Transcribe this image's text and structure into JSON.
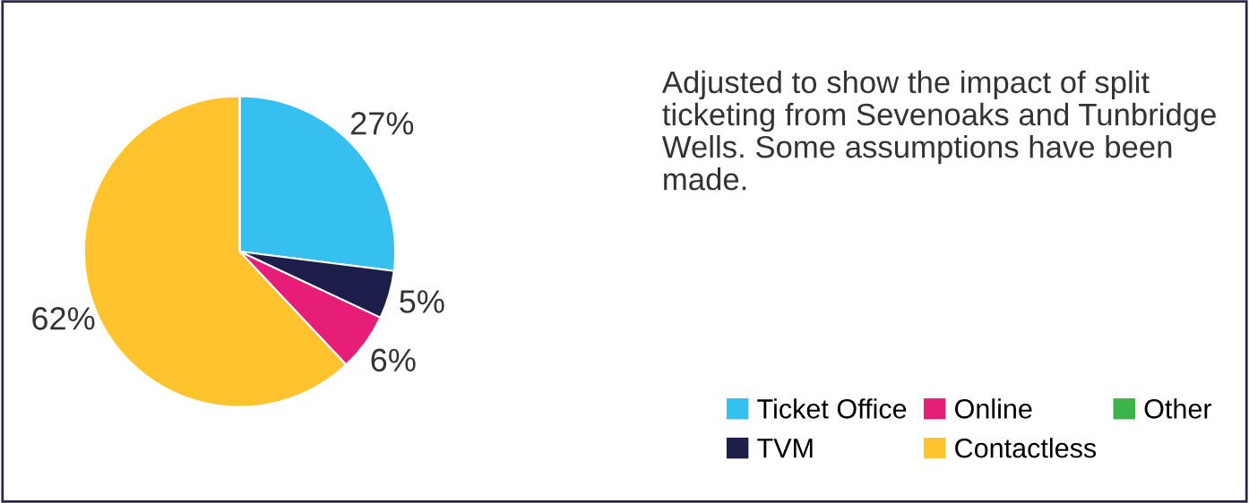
{
  "chart_data": {
    "type": "pie",
    "categories": [
      "Ticket Office",
      "TVM",
      "Online",
      "Contactless",
      "Other"
    ],
    "values": [
      27,
      5,
      6,
      62,
      0
    ],
    "value_labels": [
      "27%",
      "5%",
      "6%",
      "62%",
      null
    ],
    "colors": [
      "#35c0ef",
      "#1e1e4b",
      "#e61e78",
      "#fec32d",
      "#3cb44a"
    ],
    "annotations": [
      "Adjusted to show the impact of split ticketing from Sevenoaks and Tunbridge Wells. Some assumptions have been made."
    ],
    "legend": "bottom right"
  }
}
